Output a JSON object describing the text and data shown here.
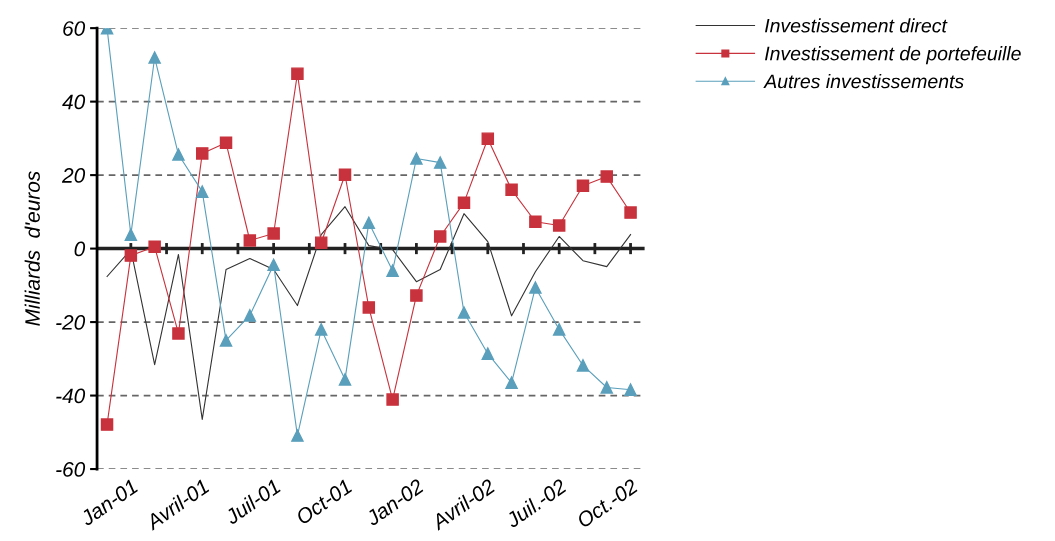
{
  "chart_data": {
    "type": "line",
    "ylabel": "Milliards  d'euros",
    "categories": [
      null,
      "Jan-01",
      null,
      null,
      "Avril-01",
      null,
      null,
      "Juil-01",
      null,
      null,
      "Oct-01",
      null,
      null,
      "Jan-02",
      null,
      null,
      "Avril-02",
      null,
      null,
      "Juil.-02",
      null,
      null,
      "Oct.-02"
    ],
    "series": [
      {
        "name": "Investissement direct",
        "color": "#333333",
        "marker": "none",
        "values": [
          -7.6,
          -0.3,
          -31.6,
          -1.6,
          -46.5,
          -5.7,
          -2.7,
          -5.7,
          -15.5,
          3.8,
          11.4,
          0.8,
          -0.3,
          -9,
          -5.7,
          9.5,
          1.9,
          -18.3,
          -6.3,
          3.3,
          -3.3,
          -4.9,
          3.8
        ]
      },
      {
        "name": "Investissement de portefeuille",
        "color": "#c8323c",
        "marker": "square",
        "values": [
          -47.9,
          -1.9,
          0.5,
          -23.1,
          25.9,
          28.8,
          2.2,
          4.1,
          47.6,
          1.6,
          20.1,
          -16,
          -41.1,
          -12.8,
          3.3,
          12.5,
          29.9,
          16,
          7.3,
          6.3,
          17.1,
          19.6,
          9.8
        ]
      },
      {
        "name": "Autres investissements",
        "color": "#5a9fbb",
        "marker": "triangle",
        "values": [
          60,
          3.8,
          52,
          25.6,
          15.5,
          -25,
          -18.2,
          -4.4,
          -50.9,
          -22,
          -35.6,
          7,
          -6,
          24.5,
          23.4,
          -17.4,
          -28.6,
          -36.5,
          -10.6,
          -22,
          -31.8,
          -37.8,
          -38.4
        ]
      }
    ],
    "ylim": [
      -60,
      60
    ],
    "yticks": [
      -60,
      -40,
      -20,
      0,
      20,
      40,
      60
    ],
    "grid": "y",
    "legend": "top right",
    "ref_lines": [
      {
        "axis": "y",
        "value": 0,
        "color": "#222222"
      }
    ]
  }
}
